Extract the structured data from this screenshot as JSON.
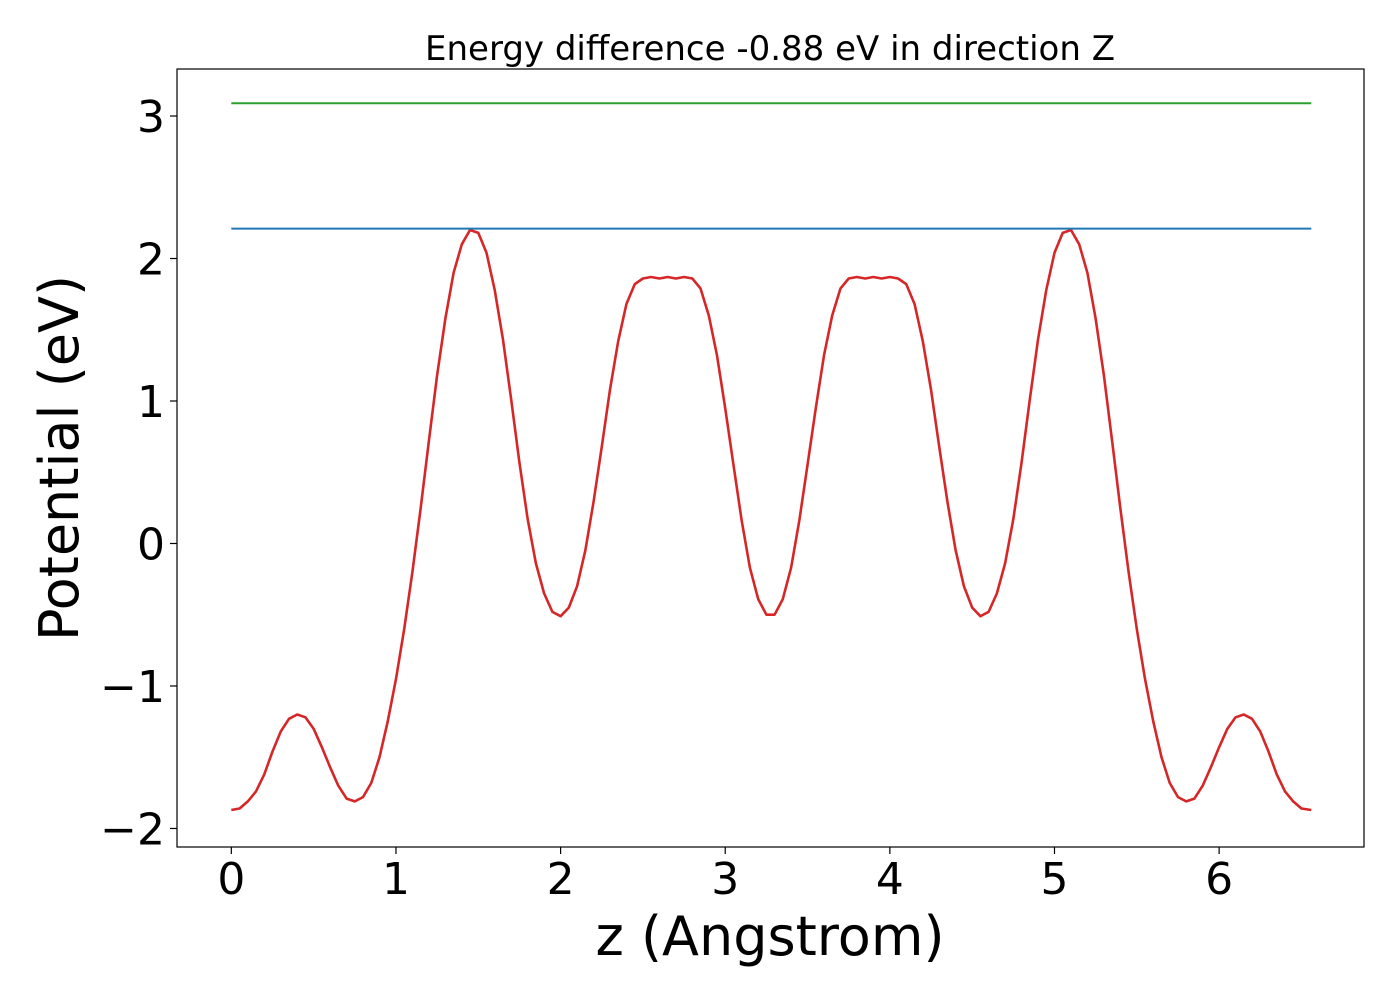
{
  "chart_data": {
    "type": "line",
    "title": "Energy difference -0.88 eV in direction Z",
    "xlabel": "z (Angstrom)",
    "ylabel": "Potential (eV)",
    "xlim": [
      -0.33,
      6.88
    ],
    "ylim": [
      -2.13,
      3.33
    ],
    "xticks": [
      0,
      1,
      2,
      3,
      4,
      5,
      6
    ],
    "xtick_labels": [
      "0",
      "1",
      "2",
      "3",
      "4",
      "5",
      "6"
    ],
    "yticks": [
      -2,
      -1,
      0,
      1,
      2,
      3
    ],
    "ytick_labels": [
      "−2",
      "−1",
      "0",
      "1",
      "2",
      "3"
    ],
    "grid": false,
    "series": [
      {
        "color": "#d62728",
        "x": [
          0.0,
          0.05,
          0.1,
          0.15,
          0.2,
          0.25,
          0.3,
          0.35,
          0.4,
          0.45,
          0.5,
          0.55,
          0.6,
          0.65,
          0.7,
          0.75,
          0.8,
          0.85,
          0.9,
          0.95,
          1.0,
          1.05,
          1.1,
          1.15,
          1.2,
          1.25,
          1.3,
          1.35,
          1.4,
          1.45,
          1.5,
          1.55,
          1.6,
          1.65,
          1.7,
          1.75,
          1.8,
          1.85,
          1.9,
          1.95,
          2.0,
          2.05,
          2.1,
          2.15,
          2.2,
          2.25,
          2.3,
          2.35,
          2.4,
          2.45,
          2.5,
          2.55,
          2.6,
          2.65,
          2.7,
          2.75,
          2.8,
          2.85,
          2.9,
          2.95,
          3.0,
          3.05,
          3.1,
          3.15,
          3.2,
          3.25,
          3.3,
          3.35,
          3.4,
          3.45,
          3.5,
          3.55,
          3.6,
          3.65,
          3.7,
          3.75,
          3.8,
          3.85,
          3.9,
          3.95,
          4.0,
          4.05,
          4.1,
          4.15,
          4.2,
          4.25,
          4.3,
          4.35,
          4.4,
          4.45,
          4.5,
          4.55,
          4.6,
          4.65,
          4.7,
          4.75,
          4.8,
          4.85,
          4.9,
          4.95,
          5.0,
          5.05,
          5.1,
          5.15,
          5.2,
          5.25,
          5.3,
          5.35,
          5.4,
          5.45,
          5.5,
          5.55,
          5.6,
          5.65,
          5.7,
          5.75,
          5.8,
          5.85,
          5.9,
          5.95,
          6.0,
          6.05,
          6.1,
          6.15,
          6.2,
          6.25,
          6.3,
          6.35,
          6.4,
          6.45,
          6.5,
          6.56
        ],
        "y": [
          -1.87,
          -1.86,
          -1.81,
          -1.74,
          -1.62,
          -1.46,
          -1.32,
          -1.23,
          -1.2,
          -1.22,
          -1.3,
          -1.43,
          -1.57,
          -1.7,
          -1.79,
          -1.81,
          -1.78,
          -1.68,
          -1.5,
          -1.25,
          -0.95,
          -0.6,
          -0.2,
          0.25,
          0.72,
          1.18,
          1.58,
          1.9,
          2.1,
          2.2,
          2.18,
          2.04,
          1.78,
          1.43,
          1.01,
          0.57,
          0.17,
          -0.14,
          -0.35,
          -0.48,
          -0.51,
          -0.45,
          -0.3,
          -0.05,
          0.29,
          0.68,
          1.08,
          1.42,
          1.68,
          1.82,
          1.86,
          1.87,
          1.86,
          1.87,
          1.86,
          1.87,
          1.86,
          1.79,
          1.6,
          1.32,
          0.95,
          0.55,
          0.16,
          -0.17,
          -0.39,
          -0.5,
          -0.5,
          -0.39,
          -0.17,
          0.16,
          0.55,
          0.95,
          1.32,
          1.6,
          1.79,
          1.86,
          1.87,
          1.86,
          1.87,
          1.86,
          1.87,
          1.86,
          1.82,
          1.68,
          1.42,
          1.08,
          0.68,
          0.29,
          -0.05,
          -0.3,
          -0.45,
          -0.51,
          -0.48,
          -0.35,
          -0.14,
          0.17,
          0.57,
          1.01,
          1.43,
          1.78,
          2.04,
          2.18,
          2.2,
          2.1,
          1.9,
          1.58,
          1.18,
          0.72,
          0.25,
          -0.2,
          -0.6,
          -0.95,
          -1.25,
          -1.5,
          -1.68,
          -1.78,
          -1.81,
          -1.79,
          -1.7,
          -1.57,
          -1.43,
          -1.3,
          -1.22,
          -1.2,
          -1.23,
          -1.32,
          -1.46,
          -1.62,
          -1.74,
          -1.81,
          -1.86,
          -1.87
        ]
      },
      {
        "color": "#1f77b4",
        "x": [
          0.0,
          6.56
        ],
        "y": [
          2.21,
          2.21
        ]
      },
      {
        "color": "#2ca02c",
        "x": [
          0.0,
          6.56
        ],
        "y": [
          3.09,
          3.09
        ]
      }
    ]
  }
}
